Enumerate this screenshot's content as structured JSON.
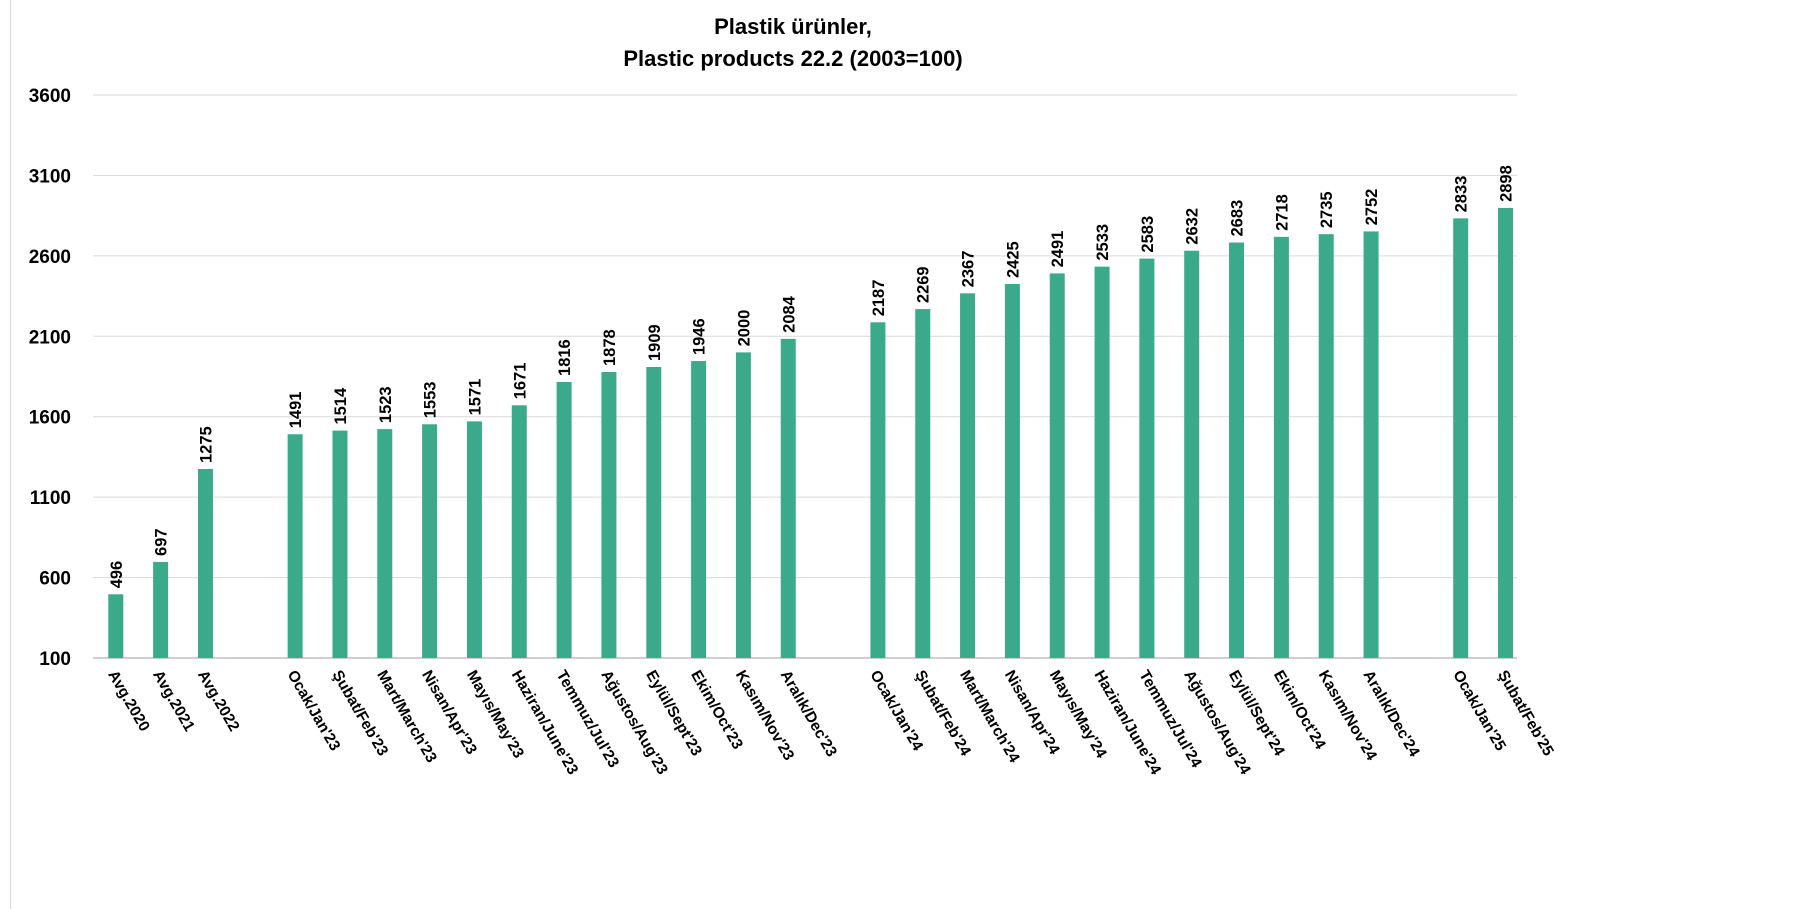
{
  "chart_data": {
    "type": "bar",
    "title_lines": [
      "Plastik ürünler,",
      "Plastic products 22.2  (2003=100)"
    ],
    "xlabel": "",
    "ylabel": "",
    "ylim": [
      100,
      3600
    ],
    "yticks": [
      100,
      600,
      1100,
      1600,
      2100,
      2600,
      3100,
      3600
    ],
    "grid": true,
    "bar_color": "#3aaa8a",
    "categories": [
      "Avg.2020",
      "Avg.2021",
      "Avg.2022",
      "",
      "Ocak/Jan'23",
      "Şubat/Feb'23",
      "Mart/March'23",
      "Nisan/Apr'23",
      "Mayıs/May'23",
      "Haziran/June'23",
      "Temmuz/Jul'23",
      "Ağustos/Aug'23",
      "Eylül/Sept'23",
      "Ekim/Oct'23",
      "Kasım/Nov'23",
      "Aralık/Dec'23",
      "",
      "Ocak/Jan'24",
      "Şubat/Feb'24",
      "Mart/March'24",
      "Nisan/Apr'24",
      "Mayıs/May'24",
      "Haziran/June'24",
      "Temmuz/Jul'24",
      "Ağustos/Aug'24",
      "Eylül/Sept'24",
      "Ekim/Oct'24",
      "Kasım/Nov'24",
      "Aralık/Dec'24",
      "",
      "Ocak/Jan'25",
      "Şubat/Feb'25"
    ],
    "values": [
      496,
      697,
      1275,
      null,
      1491,
      1514,
      1523,
      1553,
      1571,
      1671,
      1816,
      1878,
      1909,
      1946,
      2000,
      2084,
      null,
      2187,
      2269,
      2367,
      2425,
      2491,
      2533,
      2583,
      2632,
      2683,
      2718,
      2735,
      2752,
      null,
      2833,
      2898
    ]
  }
}
